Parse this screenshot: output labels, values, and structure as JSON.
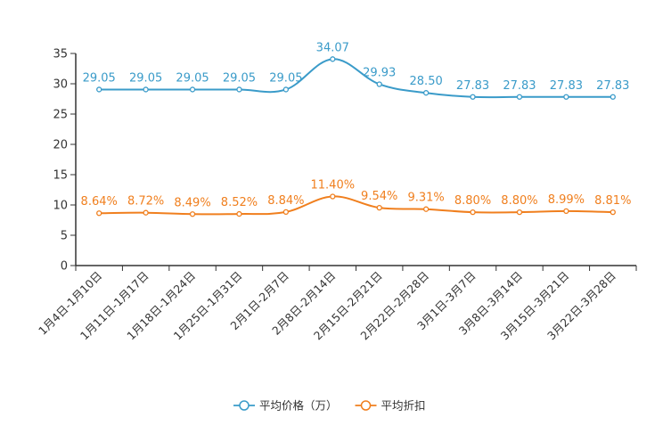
{
  "chart_data": {
    "type": "line",
    "title": "",
    "xlabel": "",
    "ylabel": "",
    "ylim": [
      0,
      35
    ],
    "yticks": [
      0,
      5,
      10,
      15,
      20,
      25,
      30,
      35
    ],
    "grid": false,
    "legend_position": "bottom-center",
    "categories": [
      "1月4日-1月10日",
      "1月11日-1月17日",
      "1月18日-1月24日",
      "1月25日-1月31日",
      "2月1日-2月7日",
      "2月8日-2月14日",
      "2月15日-2月21日",
      "2月22日-2月28日",
      "3月1日-3月7日",
      "3月8日-3月14日",
      "3月15日-3月21日",
      "3月22日-3月28日"
    ],
    "series": [
      {
        "name": "平均价格（万）",
        "color": "#3a9bc9",
        "values": [
          29.05,
          29.05,
          29.05,
          29.05,
          29.05,
          34.07,
          29.93,
          28.5,
          27.83,
          27.83,
          27.83,
          27.83
        ],
        "labels": [
          "29.05",
          "29.05",
          "29.05",
          "29.05",
          "29.05",
          "34.07",
          "29.93",
          "28.50",
          "27.83",
          "27.83",
          "27.83",
          "27.83"
        ]
      },
      {
        "name": "平均折扣",
        "color": "#f07f1e",
        "values": [
          8.64,
          8.72,
          8.49,
          8.52,
          8.84,
          11.4,
          9.54,
          9.31,
          8.8,
          8.8,
          8.99,
          8.81
        ],
        "labels": [
          "8.64%",
          "8.72%",
          "8.49%",
          "8.52%",
          "8.84%",
          "11.40%",
          "9.54%",
          "9.31%",
          "8.80%",
          "8.80%",
          "8.99%",
          "8.81%"
        ]
      }
    ]
  }
}
